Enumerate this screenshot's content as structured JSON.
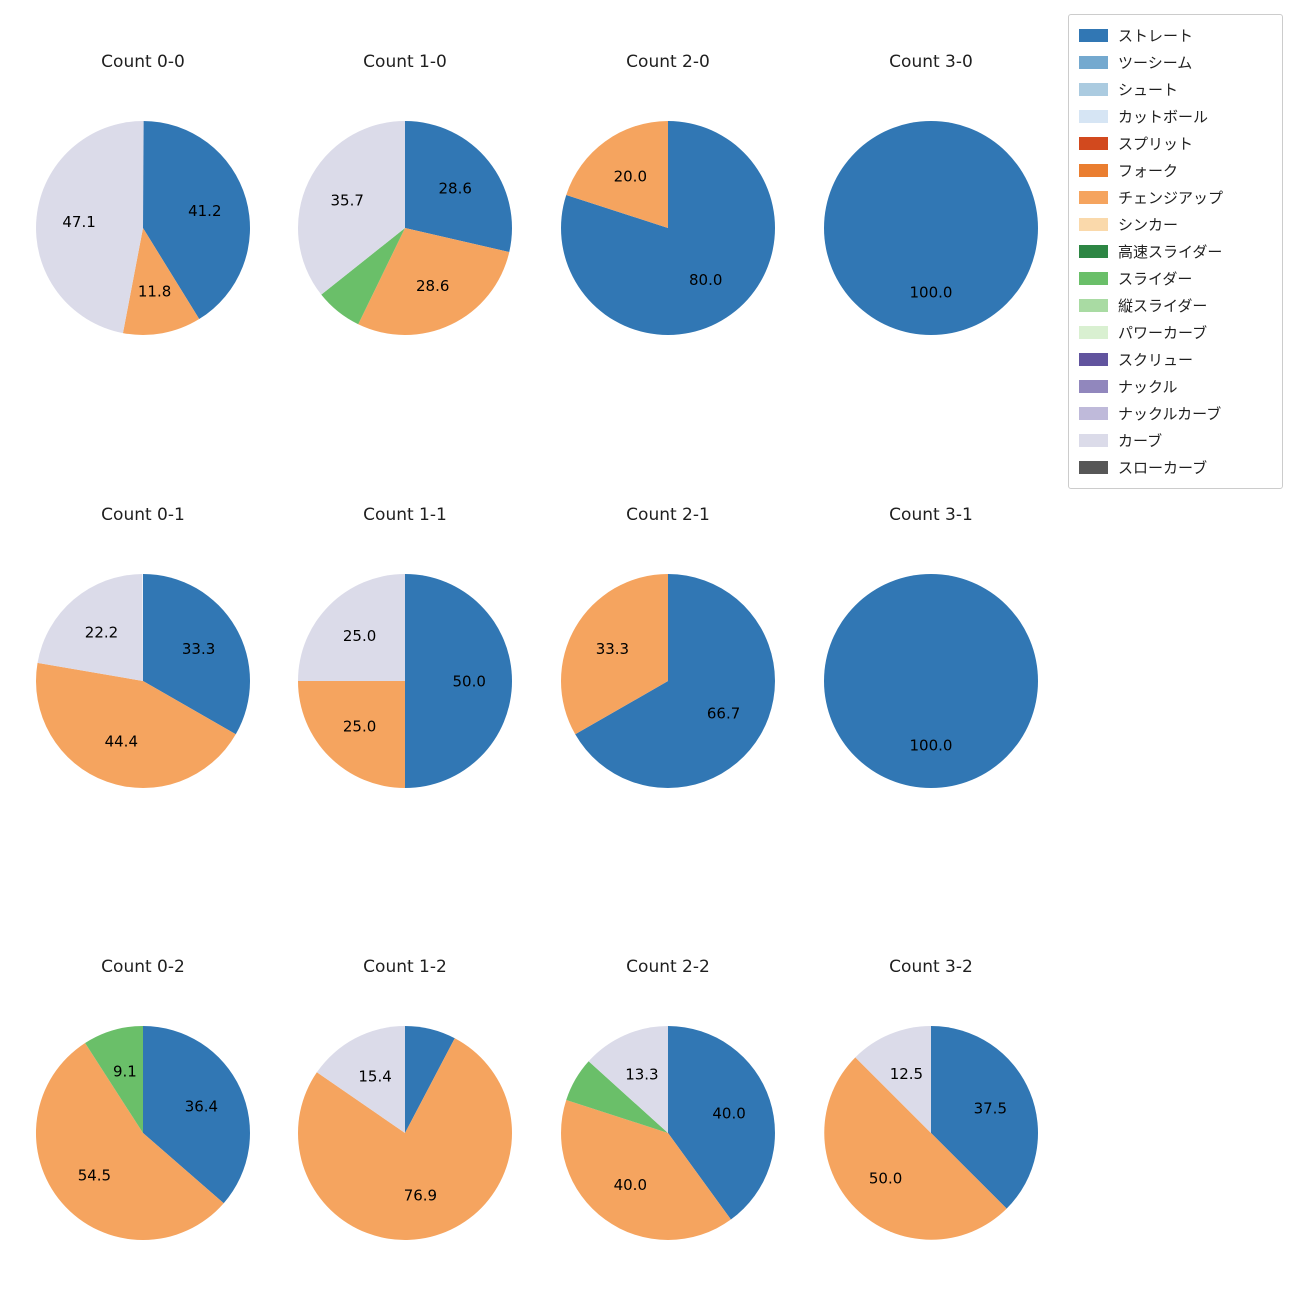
{
  "figure": {
    "background": "#ffffff",
    "text_color": "#1f1f1f"
  },
  "legend": {
    "position": "top-right",
    "items": [
      {
        "label": "ストレート",
        "color": "#3177b4"
      },
      {
        "label": "ツーシーム",
        "color": "#74a9cf"
      },
      {
        "label": "シュート",
        "color": "#abcbe0"
      },
      {
        "label": "カットボール",
        "color": "#d6e5f4"
      },
      {
        "label": "スプリット",
        "color": "#d2491e"
      },
      {
        "label": "フォーク",
        "color": "#ea7e30"
      },
      {
        "label": "チェンジアップ",
        "color": "#f5a45f"
      },
      {
        "label": "シンカー",
        "color": "#fad9ab"
      },
      {
        "label": "高速スライダー",
        "color": "#2d8644"
      },
      {
        "label": "スライダー",
        "color": "#6abf69"
      },
      {
        "label": "縦スライダー",
        "color": "#a9dba3"
      },
      {
        "label": "パワーカーブ",
        "color": "#d9f0d1"
      },
      {
        "label": "スクリュー",
        "color": "#61549e"
      },
      {
        "label": "ナックル",
        "color": "#9187bd"
      },
      {
        "label": "ナックルカーブ",
        "color": "#bfbada"
      },
      {
        "label": "カーブ",
        "color": "#dbdbe9"
      },
      {
        "label": "スローカーブ",
        "color": "#575757"
      }
    ]
  },
  "chart_data": [
    {
      "type": "pie",
      "title": "Count 0-0",
      "start_angle_deg": 90,
      "direction": "clockwise",
      "slices": [
        {
          "label": "ストレート",
          "value": 41.2,
          "pct_label": "41.2"
        },
        {
          "label": "チェンジアップ",
          "value": 11.8,
          "pct_label": "11.8"
        },
        {
          "label": "カーブ",
          "value": 47.1,
          "pct_label": "47.1"
        }
      ]
    },
    {
      "type": "pie",
      "title": "Count 1-0",
      "start_angle_deg": 90,
      "direction": "clockwise",
      "slices": [
        {
          "label": "ストレート",
          "value": 28.6,
          "pct_label": "28.6"
        },
        {
          "label": "チェンジアップ",
          "value": 28.6,
          "pct_label": "28.6"
        },
        {
          "label": "スライダー",
          "value": 7.1,
          "pct_label": ""
        },
        {
          "label": "カーブ",
          "value": 35.7,
          "pct_label": "35.7"
        }
      ]
    },
    {
      "type": "pie",
      "title": "Count 2-0",
      "start_angle_deg": 90,
      "direction": "clockwise",
      "slices": [
        {
          "label": "ストレート",
          "value": 80.0,
          "pct_label": "80.0"
        },
        {
          "label": "チェンジアップ",
          "value": 20.0,
          "pct_label": "20.0"
        }
      ]
    },
    {
      "type": "pie",
      "title": "Count 3-0",
      "start_angle_deg": 90,
      "direction": "clockwise",
      "slices": [
        {
          "label": "ストレート",
          "value": 100.0,
          "pct_label": "100.0"
        }
      ]
    },
    {
      "type": "pie",
      "title": "Count 0-1",
      "start_angle_deg": 90,
      "direction": "clockwise",
      "slices": [
        {
          "label": "ストレート",
          "value": 33.3,
          "pct_label": "33.3"
        },
        {
          "label": "チェンジアップ",
          "value": 44.4,
          "pct_label": "44.4"
        },
        {
          "label": "カーブ",
          "value": 22.2,
          "pct_label": "22.2"
        }
      ]
    },
    {
      "type": "pie",
      "title": "Count 1-1",
      "start_angle_deg": 90,
      "direction": "clockwise",
      "slices": [
        {
          "label": "ストレート",
          "value": 50.0,
          "pct_label": "50.0"
        },
        {
          "label": "チェンジアップ",
          "value": 25.0,
          "pct_label": "25.0"
        },
        {
          "label": "カーブ",
          "value": 25.0,
          "pct_label": "25.0"
        }
      ]
    },
    {
      "type": "pie",
      "title": "Count 2-1",
      "start_angle_deg": 90,
      "direction": "clockwise",
      "slices": [
        {
          "label": "ストレート",
          "value": 66.7,
          "pct_label": "66.7"
        },
        {
          "label": "チェンジアップ",
          "value": 33.3,
          "pct_label": "33.3"
        }
      ]
    },
    {
      "type": "pie",
      "title": "Count 3-1",
      "start_angle_deg": 90,
      "direction": "clockwise",
      "slices": [
        {
          "label": "ストレート",
          "value": 100.0,
          "pct_label": "100.0"
        }
      ]
    },
    {
      "type": "pie",
      "title": "Count 0-2",
      "start_angle_deg": 90,
      "direction": "clockwise",
      "slices": [
        {
          "label": "ストレート",
          "value": 36.4,
          "pct_label": "36.4"
        },
        {
          "label": "チェンジアップ",
          "value": 54.5,
          "pct_label": "54.5"
        },
        {
          "label": "スライダー",
          "value": 9.1,
          "pct_label": "9.1"
        }
      ]
    },
    {
      "type": "pie",
      "title": "Count 1-2",
      "start_angle_deg": 90,
      "direction": "clockwise",
      "slices": [
        {
          "label": "ストレート",
          "value": 7.7,
          "pct_label": ""
        },
        {
          "label": "チェンジアップ",
          "value": 76.9,
          "pct_label": "76.9"
        },
        {
          "label": "カーブ",
          "value": 15.4,
          "pct_label": "15.4"
        }
      ]
    },
    {
      "type": "pie",
      "title": "Count 2-2",
      "start_angle_deg": 90,
      "direction": "clockwise",
      "slices": [
        {
          "label": "ストレート",
          "value": 40.0,
          "pct_label": "40.0"
        },
        {
          "label": "チェンジアップ",
          "value": 40.0,
          "pct_label": "40.0"
        },
        {
          "label": "スライダー",
          "value": 6.7,
          "pct_label": ""
        },
        {
          "label": "カーブ",
          "value": 13.3,
          "pct_label": "13.3"
        }
      ]
    },
    {
      "type": "pie",
      "title": "Count 3-2",
      "start_angle_deg": 90,
      "direction": "clockwise",
      "slices": [
        {
          "label": "ストレート",
          "value": 37.5,
          "pct_label": "37.5"
        },
        {
          "label": "チェンジアップ",
          "value": 50.0,
          "pct_label": "50.0"
        },
        {
          "label": "カーブ",
          "value": 12.5,
          "pct_label": "12.5"
        }
      ]
    }
  ]
}
